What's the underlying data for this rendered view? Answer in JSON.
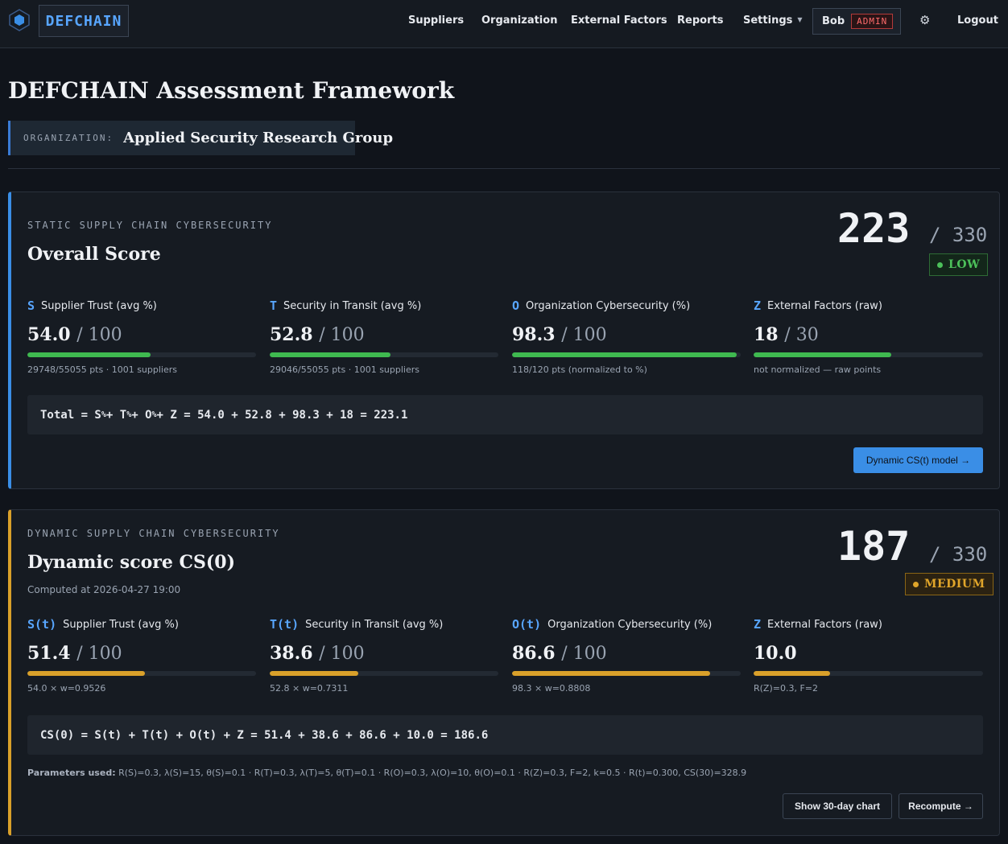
{
  "nav": {
    "brand": "DEFCHAIN",
    "links": [
      "Suppliers",
      "Organization",
      "External Factors",
      "Reports"
    ],
    "settings": "Settings",
    "user": "Bob",
    "role": "ADMIN",
    "gear_icon": "⚙",
    "logout": "Logout"
  },
  "header": {
    "title": "DEFCHAIN Assessment Framework",
    "org_label": "ORGANIZATION:",
    "org_name": "Applied Security Research Group"
  },
  "static_card": {
    "eyebrow": "STATIC SUPPLY CHAIN CYBERSECURITY",
    "title": "Overall Score",
    "score": "223",
    "max": "/ 330",
    "risk": "LOW",
    "metrics": [
      {
        "sym": "S",
        "label": "Supplier Trust (avg %)",
        "value": "54.0",
        "of": "/ 100",
        "fill": 0.54,
        "note": "29748/55055 pts · 1001 suppliers"
      },
      {
        "sym": "T",
        "label": "Security in Transit (avg %)",
        "value": "52.8",
        "of": "/ 100",
        "fill": 0.528,
        "note": "29046/55055 pts · 1001 suppliers"
      },
      {
        "sym": "O",
        "label": "Organization Cybersecurity (%)",
        "value": "98.3",
        "of": "/ 100",
        "fill": 0.983,
        "note": "118/120 pts (normalized to %)"
      },
      {
        "sym": "Z",
        "label": "External Factors (raw)",
        "value": "18",
        "of": "/ 30",
        "fill": 0.6,
        "note": "not normalized — raw points"
      }
    ],
    "formula_prefix": "Total = S",
    "formula_sub": "%",
    "formula_t": " + T",
    "formula_o": " + O",
    "formula_rest": " + Z = 54.0 + 52.8 + 98.3 + 18 = 223.1",
    "button": "Dynamic CS(t) model →"
  },
  "dynamic_card": {
    "eyebrow": "DYNAMIC SUPPLY CHAIN CYBERSECURITY",
    "title": "Dynamic score CS(0)",
    "computed": "Computed at 2026-04-27 19:00",
    "score": "187",
    "max": "/ 330",
    "risk": "MEDIUM",
    "metrics": [
      {
        "sym": "S(t)",
        "label": "Supplier Trust (avg %)",
        "value": "51.4",
        "of": "/ 100",
        "fill": 0.514,
        "note": "54.0 × w=0.9526"
      },
      {
        "sym": "T(t)",
        "label": "Security in Transit (avg %)",
        "value": "38.6",
        "of": "/ 100",
        "fill": 0.386,
        "note": "52.8 × w=0.7311"
      },
      {
        "sym": "O(t)",
        "label": "Organization Cybersecurity (%)",
        "value": "86.6",
        "of": "/ 100",
        "fill": 0.866,
        "note": "98.3 × w=0.8808"
      },
      {
        "sym": "Z",
        "label": "External Factors (raw)",
        "value": "10.0",
        "of": "",
        "fill": 0.333,
        "note": "R(Z)=0.3, F=2"
      }
    ],
    "formula": "CS(0) = S(t) + T(t) + O(t) + Z = 51.4 + 38.6 + 86.6 + 10.0 = 186.6",
    "params_label": "Parameters used:",
    "params": "R(S)=0.3, λ(S)=15, θ(S)=0.1 · R(T)=0.3, λ(T)=5, θ(T)=0.1 · R(O)=0.3, λ(O)=10, θ(O)=0.1 · R(Z)=0.3, F=2, k=0.5 · R(t)=0.300, CS(30)=328.9",
    "btn_chart": "Show 30-day chart",
    "btn_recompute": "Recompute →"
  },
  "colors": {
    "green": "#3fb950",
    "amber": "#d9a02a",
    "blue": "#58a6ff"
  }
}
